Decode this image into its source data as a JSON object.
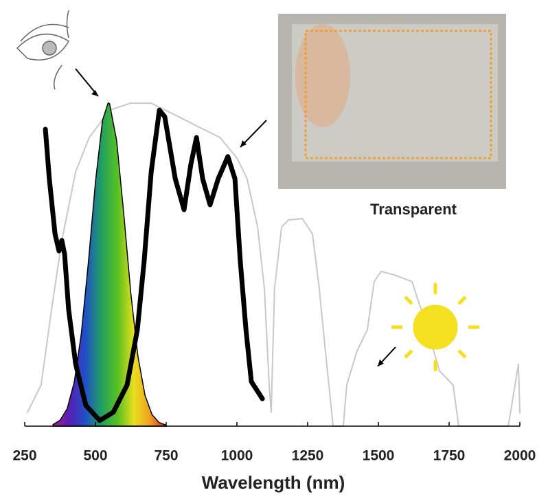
{
  "chart_data": {
    "type": "line",
    "x_label": "Wavelength (nm)",
    "annotation": "Transparent",
    "xlim": [
      250,
      2000
    ],
    "ylim": [
      0,
      1
    ],
    "xticks": [
      250,
      500,
      750,
      1000,
      1250,
      1500,
      1750,
      2000
    ],
    "series": [
      {
        "color": "#c8c8c8",
        "x": [
          260,
          308,
          345,
          381,
          430,
          478,
          551,
          624,
          697,
          794,
          867,
          940,
          1000,
          1036,
          1073,
          1097,
          1114,
          1121,
          1133,
          1158,
          1182,
          1231,
          1267,
          1291,
          1315,
          1340,
          1376,
          1388,
          1425,
          1461,
          1485,
          1510,
          1558,
          1619,
          1643,
          1667,
          1716,
          1764,
          1784,
          1959,
          1983,
          1995,
          2000
        ],
        "values": [
          0.042,
          0.125,
          0.354,
          0.563,
          0.771,
          0.875,
          0.958,
          0.979,
          0.979,
          0.938,
          0.906,
          0.875,
          0.813,
          0.75,
          0.604,
          0.417,
          0.125,
          0.042,
          0.417,
          0.604,
          0.625,
          0.629,
          0.583,
          0.417,
          0.208,
          0,
          0,
          0.125,
          0.229,
          0.292,
          0.438,
          0.469,
          0.458,
          0.438,
          0.375,
          0.313,
          0.167,
          0.125,
          0,
          0,
          0.125,
          0.188,
          0.04
        ]
      },
      {
        "color": "#000000",
        "fill": true,
        "gradient": [
          "#a0208c",
          "#5a1eb4",
          "#2050c8",
          "#20a060",
          "#58c020",
          "#e8e020",
          "#f0a020",
          "#e02020"
        ],
        "x": [
          350,
          375,
          400,
          425,
          450,
          475,
          500,
          525,
          545,
          550,
          575,
          600,
          625,
          650,
          675,
          700,
          725,
          750
        ],
        "values": [
          0.005,
          0.018,
          0.053,
          0.133,
          0.28,
          0.496,
          0.74,
          0.927,
          0.98,
          0.977,
          0.865,
          0.644,
          0.403,
          0.212,
          0.094,
          0.035,
          0.011,
          0.003
        ]
      },
      {
        "color": "#000000",
        "x": [
          323,
          337,
          357,
          371,
          381,
          391,
          405,
          430,
          466,
          515,
          563,
          612,
          648,
          672,
          697,
          726,
          745,
          782,
          813,
          837,
          857,
          879,
          905,
          934,
          968,
          993,
          1012,
          1032,
          1051,
          1090
        ],
        "values": [
          0.9,
          0.75,
          0.583,
          0.531,
          0.563,
          0.521,
          0.354,
          0.188,
          0.063,
          0.017,
          0.042,
          0.125,
          0.292,
          0.5,
          0.771,
          0.958,
          0.938,
          0.75,
          0.656,
          0.792,
          0.875,
          0.75,
          0.671,
          0.75,
          0.817,
          0.75,
          0.5,
          0.292,
          0.135,
          0.083
        ]
      }
    ]
  }
}
